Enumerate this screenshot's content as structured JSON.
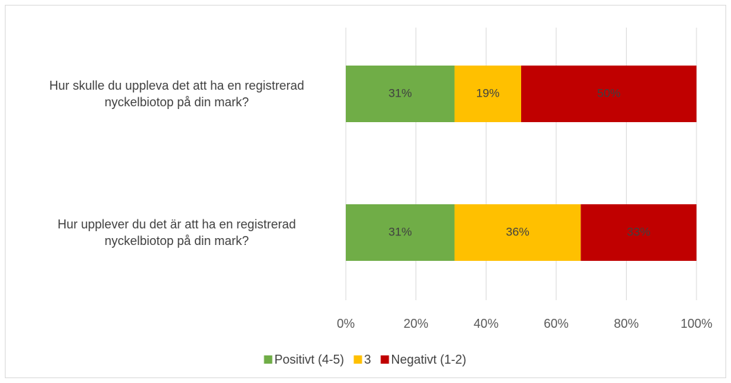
{
  "chart_data": {
    "type": "bar",
    "orientation": "horizontal",
    "stacked": true,
    "categories": [
      "Hur skulle du uppleva det att ha en registrerad nyckelbiotop på din mark?",
      "Hur upplever du det är att ha en registrerad nyckelbiotop på din mark?"
    ],
    "series": [
      {
        "name": "Positivt (4-5)",
        "color": "#70ad47",
        "values": [
          31,
          31
        ],
        "value_labels": [
          "31%",
          "31%"
        ]
      },
      {
        "name": "3",
        "color": "#ffc000",
        "values": [
          19,
          36
        ],
        "value_labels": [
          "19%",
          "36%"
        ]
      },
      {
        "name": "Negativt (1-2)",
        "color": "#c00000",
        "values": [
          50,
          33
        ],
        "value_labels": [
          "50%",
          "33%"
        ]
      }
    ],
    "xlim": [
      0,
      100
    ],
    "xticks": [
      {
        "value": 0,
        "label": "0%"
      },
      {
        "value": 20,
        "label": "20%"
      },
      {
        "value": 40,
        "label": "40%"
      },
      {
        "value": 60,
        "label": "60%"
      },
      {
        "value": 80,
        "label": "80%"
      },
      {
        "value": 100,
        "label": "100%"
      }
    ],
    "grid": true,
    "legend": "bottom"
  }
}
